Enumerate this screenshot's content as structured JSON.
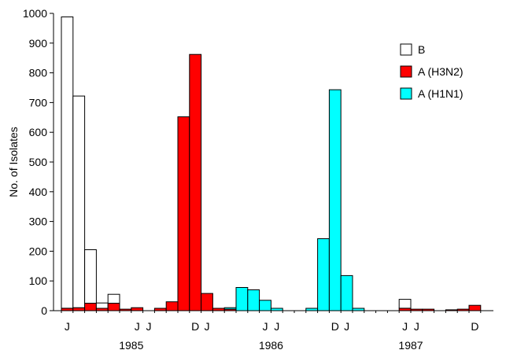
{
  "chart_data": {
    "type": "bar",
    "stacked": true,
    "title": "",
    "xlabel": "",
    "ylabel": "No. of Isolates",
    "ylim": [
      0,
      1000
    ],
    "yticks": [
      0,
      100,
      200,
      300,
      400,
      500,
      600,
      700,
      800,
      900,
      1000
    ],
    "month_labels": [
      {
        "month_index": 0,
        "label": "J"
      },
      {
        "month_index": 6,
        "label": "J"
      },
      {
        "month_index": 7,
        "label": "J"
      },
      {
        "month_index": 11,
        "label": "D"
      },
      {
        "month_index": 12,
        "label": "J"
      },
      {
        "month_index": 17,
        "label": "J"
      },
      {
        "month_index": 18,
        "label": "J"
      },
      {
        "month_index": 23,
        "label": "D"
      },
      {
        "month_index": 24,
        "label": "J"
      },
      {
        "month_index": 29,
        "label": "J"
      },
      {
        "month_index": 30,
        "label": "J"
      },
      {
        "month_index": 35,
        "label": "D"
      }
    ],
    "year_labels": [
      {
        "label": "1985",
        "center_month": 5.5
      },
      {
        "label": "1986",
        "center_month": 17.5
      },
      {
        "label": "1987",
        "center_month": 29.5
      }
    ],
    "series": [
      {
        "name": "B",
        "color": "#ffffff",
        "values": [
          980,
          712,
          180,
          18,
          30,
          0,
          0,
          0,
          0,
          0,
          0,
          0,
          0,
          0,
          0,
          0,
          0,
          0,
          0,
          0,
          0,
          0,
          0,
          0,
          0,
          0,
          0,
          0,
          0,
          30,
          0,
          0,
          0,
          0,
          0,
          0
        ]
      },
      {
        "name": "A (H3N2)",
        "color": "#ff0000",
        "values": [
          8,
          10,
          25,
          8,
          25,
          5,
          10,
          0,
          8,
          30,
          652,
          862,
          58,
          8,
          5,
          0,
          0,
          0,
          0,
          0,
          0,
          0,
          0,
          0,
          0,
          0,
          0,
          0,
          0,
          8,
          5,
          5,
          0,
          3,
          5,
          18
        ]
      },
      {
        "name": "A (H1N1)",
        "color": "#00ffff",
        "values": [
          0,
          0,
          0,
          0,
          0,
          0,
          0,
          0,
          0,
          0,
          0,
          0,
          0,
          0,
          5,
          78,
          70,
          35,
          8,
          0,
          0,
          8,
          242,
          743,
          118,
          8,
          0,
          0,
          0,
          0,
          0,
          0,
          0,
          0,
          0,
          0
        ]
      }
    ],
    "legend": {
      "position": "top-right",
      "entries": [
        "B",
        "A (H3N2)",
        "A (H1N1)"
      ]
    }
  }
}
